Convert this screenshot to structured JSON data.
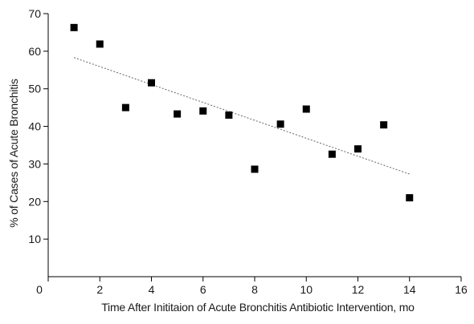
{
  "chart_data": {
    "type": "scatter",
    "title": "",
    "xlabel": "Time After Inititaion of Acute Bronchitis Antibiotic Intervention, mo",
    "ylabel": "% of Cases of Acute Bronchitis",
    "xlim": [
      0,
      16
    ],
    "ylim": [
      0,
      70
    ],
    "x_ticks": [
      "0",
      "2",
      "4",
      "6",
      "8",
      "10",
      "12",
      "14",
      "16"
    ],
    "y_ticks": [
      "10",
      "20",
      "30",
      "40",
      "50",
      "60",
      "70"
    ],
    "grid": false,
    "legend": "none",
    "series": [
      {
        "marker": "square",
        "color": "#000000",
        "points": [
          {
            "x": 1,
            "y": 66.3
          },
          {
            "x": 2,
            "y": 61.9
          },
          {
            "x": 3,
            "y": 45.0
          },
          {
            "x": 4,
            "y": 51.6
          },
          {
            "x": 5,
            "y": 43.3
          },
          {
            "x": 6,
            "y": 44.1
          },
          {
            "x": 7,
            "y": 43.0
          },
          {
            "x": 8,
            "y": 28.6
          },
          {
            "x": 9,
            "y": 40.6
          },
          {
            "x": 10,
            "y": 44.6
          },
          {
            "x": 11,
            "y": 32.6
          },
          {
            "x": 12,
            "y": 34.0
          },
          {
            "x": 13,
            "y": 40.4
          },
          {
            "x": 14,
            "y": 21.0
          }
        ]
      }
    ],
    "trendline": {
      "style": "dotted",
      "color": "#666666",
      "x": [
        1,
        14
      ],
      "y": [
        58.3,
        27.3
      ]
    }
  }
}
